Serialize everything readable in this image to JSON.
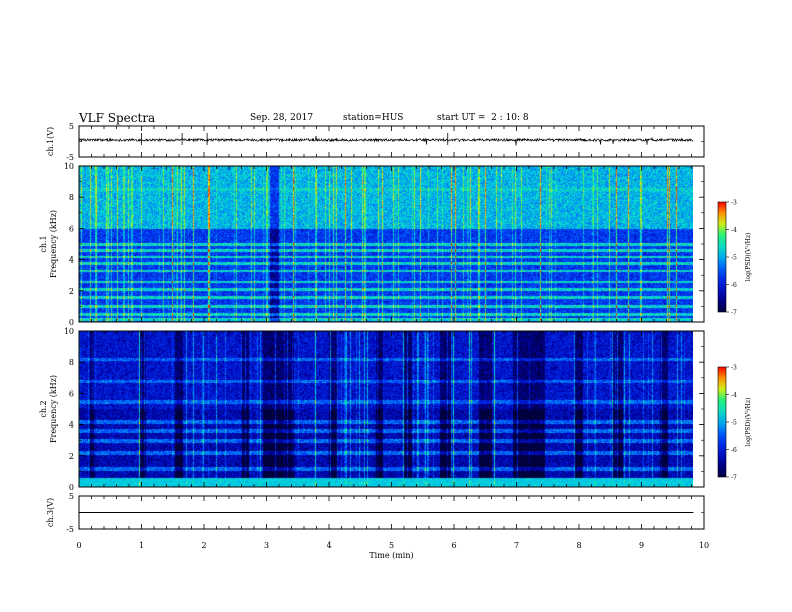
{
  "header": {
    "title": "VLF Spectra",
    "date": "Sep. 28, 2017",
    "station": "station=HUS",
    "start": "start UT =  2 : 10: 8"
  },
  "colors": {
    "background": "#ffffff",
    "axis": "#000000",
    "spectrogram_low": "#0000aa",
    "spectrogram_high": "#ff0000"
  },
  "chart_data": [
    {
      "id": "ch1-voltage",
      "type": "line",
      "ylabel": "ch.1(V)",
      "ylim": [
        -5,
        5
      ],
      "yticks": [
        "5",
        "-5"
      ],
      "baseline": 0.5,
      "series": [
        {
          "x_range": [
            0,
            9.83
          ],
          "approx_value": 0.5,
          "noise_amplitude": 0.4
        }
      ]
    },
    {
      "id": "ch1-spectrogram",
      "type": "heatmap",
      "ylabel": "ch.1\nFrequency (kHz)",
      "ylim": [
        0,
        10
      ],
      "yticks": [
        "0",
        "2",
        "4",
        "6",
        "8",
        "10"
      ],
      "x_range": [
        0,
        9.83
      ],
      "dense_band_above_khz": 6,
      "emission_lines_khz": [
        0.2,
        0.5,
        1.0,
        1.6,
        2.1,
        2.6,
        3.3,
        3.8,
        4.2,
        4.6,
        5.0,
        8.5
      ],
      "colorbar": {
        "label": "log(PSD)(V²/Hz)",
        "range": [
          -7,
          -3
        ],
        "ticks": [
          "-3",
          "-4",
          "-5",
          "-6",
          "-7"
        ]
      }
    },
    {
      "id": "ch2-spectrogram",
      "type": "heatmap",
      "ylabel": "ch.2\nFrequency (kHz)",
      "ylim": [
        0,
        10
      ],
      "yticks": [
        "0",
        "2",
        "4",
        "6",
        "8",
        "10"
      ],
      "x_range": [
        0,
        9.83
      ],
      "emission_lines_khz": [
        0.3,
        1.2,
        2.2,
        3.0,
        3.6,
        4.2,
        5.5,
        6.8,
        8.2
      ],
      "colorbar": {
        "label": "log(PSD)(V²/Hz)",
        "range": [
          -7,
          -3
        ],
        "ticks": [
          "-3",
          "-4",
          "-5",
          "-6",
          "-7"
        ]
      }
    },
    {
      "id": "ch3-voltage",
      "type": "line",
      "ylabel": "ch.3(V)",
      "ylim": [
        -5,
        5
      ],
      "yticks": [
        "5",
        "-5"
      ],
      "series": [
        {
          "x_range": [
            0,
            9.83
          ],
          "approx_value": 0
        }
      ]
    }
  ],
  "time_axis": {
    "label": "Time (min)",
    "xlim": [
      0,
      10
    ],
    "ticks": [
      "0",
      "1",
      "2",
      "3",
      "4",
      "5",
      "6",
      "7",
      "8",
      "9",
      "10"
    ]
  }
}
